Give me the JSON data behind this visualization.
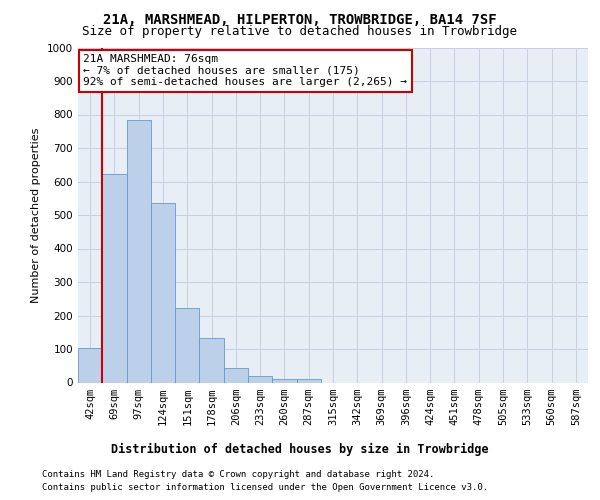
{
  "title1": "21A, MARSHMEAD, HILPERTON, TROWBRIDGE, BA14 7SF",
  "title2": "Size of property relative to detached houses in Trowbridge",
  "xlabel": "Distribution of detached houses by size in Trowbridge",
  "ylabel": "Number of detached properties",
  "footnote1": "Contains HM Land Registry data © Crown copyright and database right 2024.",
  "footnote2": "Contains public sector information licensed under the Open Government Licence v3.0.",
  "annotation_title": "21A MARSHMEAD: 76sqm",
  "annotation_line1": "← 7% of detached houses are smaller (175)",
  "annotation_line2": "92% of semi-detached houses are larger (2,265) →",
  "bar_color": "#bdd0e9",
  "bar_edge_color": "#6699cc",
  "annotation_box_facecolor": "#ffffff",
  "annotation_border_color": "#cc0000",
  "highlight_line_color": "#cc0000",
  "background_color": "#e8eef6",
  "grid_color": "#c5d0e0",
  "categories": [
    "42sqm",
    "69sqm",
    "97sqm",
    "124sqm",
    "151sqm",
    "178sqm",
    "206sqm",
    "233sqm",
    "260sqm",
    "287sqm",
    "315sqm",
    "342sqm",
    "369sqm",
    "396sqm",
    "424sqm",
    "451sqm",
    "478sqm",
    "505sqm",
    "533sqm",
    "560sqm",
    "587sqm"
  ],
  "values": [
    103,
    623,
    783,
    535,
    222,
    133,
    43,
    18,
    10,
    11,
    0,
    0,
    0,
    0,
    0,
    0,
    0,
    0,
    0,
    0,
    0
  ],
  "ylim": [
    0,
    1000
  ],
  "yticks": [
    0,
    100,
    200,
    300,
    400,
    500,
    600,
    700,
    800,
    900,
    1000
  ],
  "highlight_bar_index": 1,
  "title1_fontsize": 10,
  "title2_fontsize": 9,
  "axis_ylabel_fontsize": 8,
  "tick_fontsize": 7.5,
  "annotation_fontsize": 8,
  "xlabel_fontsize": 8.5,
  "footnote_fontsize": 6.5
}
